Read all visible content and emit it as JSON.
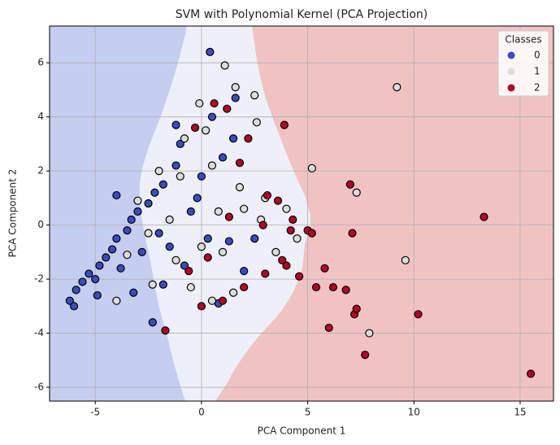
{
  "chart_data": {
    "type": "scatter",
    "title": "SVM with Polynomial Kernel (PCA Projection)",
    "x_label": "PCA Component 1",
    "y_label": "PCA Component 2",
    "legend_title": "Classes",
    "legend_position": "upper right",
    "grid": true,
    "xlim": [
      -7.15,
      16.57
    ],
    "ylim": [
      -6.51,
      7.36
    ],
    "xticks": [
      -5,
      0,
      5,
      10,
      15
    ],
    "yticks": [
      -6,
      -4,
      -2,
      0,
      2,
      4,
      6
    ],
    "series": [
      {
        "name": "0",
        "color": "#3b4cc0",
        "x": [
          -6.2,
          -6,
          -5.9,
          -5.6,
          -5.3,
          -5,
          -4.8,
          -4.5,
          -4.2,
          -4,
          -3.8,
          -3.5,
          -3.3,
          -3,
          -2.8,
          -2.5,
          -2.2,
          -2,
          -1.8,
          -1.5,
          -1.2,
          -1,
          -0.8,
          -0.5,
          0,
          0.3,
          0.5,
          0.8,
          1,
          1.3,
          1.5,
          1.6,
          2,
          -4,
          -2.3,
          -1.8,
          -3.2,
          -1.2,
          0.4,
          -4.9,
          2.5,
          -0.2
        ],
        "y": [
          -2.8,
          -3,
          -2.4,
          -2.1,
          -1.8,
          -2,
          -1.5,
          -1.2,
          -0.9,
          -0.5,
          -1.6,
          -0.2,
          0.2,
          0.5,
          -1,
          0.8,
          1.2,
          -0.3,
          1.5,
          -0.8,
          2.2,
          3,
          -1.5,
          0.5,
          1.8,
          -0.5,
          4,
          -2.9,
          2.5,
          -0.6,
          3.2,
          4.7,
          -1.7,
          1.1,
          -3.6,
          -2.2,
          -2.5,
          3.7,
          6.4,
          -2.6,
          -0.5,
          1.0
        ]
      },
      {
        "name": "1",
        "color": "#dddddd",
        "x": [
          -0.1,
          1.1,
          1.6,
          2.5,
          2.6,
          9.2,
          9.6,
          7.9,
          7.3,
          5.2,
          4.5,
          3,
          2,
          1,
          0.5,
          -0.5,
          0,
          -1,
          -1.5,
          -2,
          -2.5,
          -3,
          -3.5,
          -4,
          -2.3,
          0.5,
          1.5,
          3.5,
          2.8,
          -0.8,
          0.2,
          1.8,
          -1.2,
          0.8,
          4
        ],
        "y": [
          4.5,
          5.9,
          5.1,
          4.8,
          3.8,
          5.1,
          -1.3,
          -4,
          1.2,
          2.1,
          -0.5,
          1,
          0.6,
          -1,
          2.2,
          -2.3,
          -0.8,
          1.8,
          0.2,
          2,
          -0.3,
          0.9,
          -1.1,
          -2.8,
          -2.2,
          -2.8,
          -2.5,
          -1,
          0.2,
          3.2,
          3.5,
          1.4,
          -1.3,
          0.5,
          0.6
        ]
      },
      {
        "name": "2",
        "color": "#b40426",
        "x": [
          3.9,
          0.6,
          1.2,
          -1.7,
          0,
          1,
          2,
          3,
          4,
          5,
          5.2,
          5.8,
          6,
          6.2,
          6.8,
          7,
          7.1,
          7.2,
          7.3,
          7.7,
          10.2,
          13.3,
          15.5,
          3.1,
          3.6,
          4.2,
          2.2,
          1.8,
          1.3,
          0.3,
          -0.3,
          -0.6,
          4.6,
          3.8,
          2.9,
          4.3,
          5.4
        ],
        "y": [
          3.7,
          4.5,
          4.3,
          -3.9,
          -3,
          -2.8,
          -2.3,
          -1.8,
          -1.5,
          -0.2,
          -0.3,
          -1.6,
          -3.8,
          -2.3,
          -2.4,
          1.5,
          -0.3,
          -3.3,
          -3.1,
          -4.8,
          -3.3,
          0.3,
          -5.5,
          1.1,
          0.9,
          -0.2,
          3.2,
          2.3,
          0.3,
          -1.2,
          3.6,
          -1.7,
          -1.9,
          -1.3,
          0,
          0.2,
          -2.3
        ]
      }
    ]
  }
}
